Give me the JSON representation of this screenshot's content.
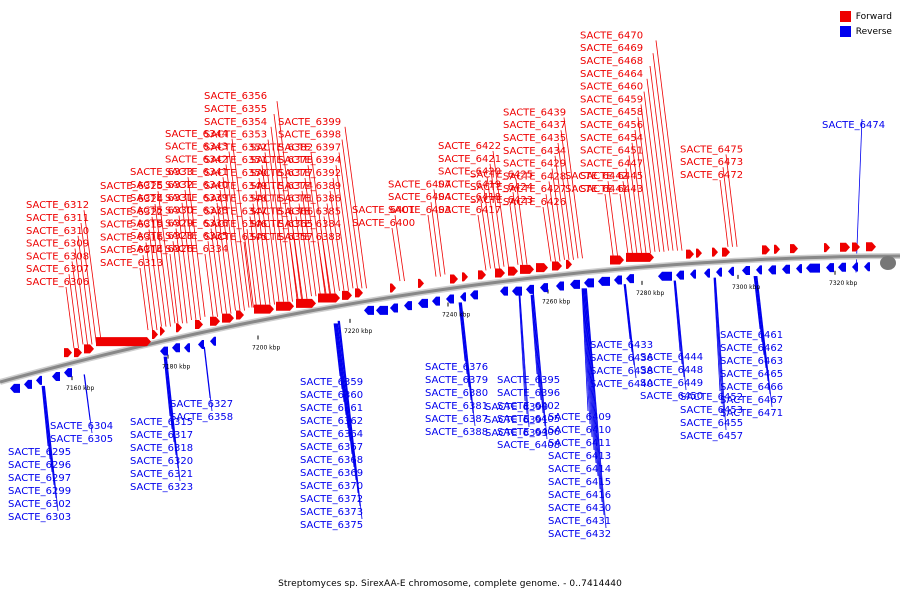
{
  "legend": [
    {
      "label": "Forward",
      "color": "#ee0000"
    },
    {
      "label": "Reverse",
      "color": "#0000ee"
    }
  ],
  "colors": {
    "forward": "#ee0000",
    "reverse": "#0000ee",
    "backbone": "#888888"
  },
  "caption": "Streptomyces sp. SirexAA-E chromosome, complete genome. - 0..7414440",
  "ticks": [
    "7160 kbp",
    "7180 kbp",
    "7200 kbp",
    "7220 kbp",
    "7240 kbp",
    "7260 kbp",
    "7280 kbp",
    "7300 kbp",
    "7320 kbp"
  ],
  "forward_genes": [
    "SACTE_6306",
    "SACTE_6307",
    "SACTE_6308",
    "SACTE_6309",
    "SACTE_6310",
    "SACTE_6311",
    "SACTE_6312",
    "SACTE_6313",
    "SACTE_6314",
    "SACTE_6316",
    "SACTE_6319",
    "SACTE_6322",
    "SACTE_6324",
    "SACTE_6325",
    "SACTE_6326",
    "SACTE_6328",
    "SACTE_6329",
    "SACTE_6330",
    "SACTE_6331",
    "SACTE_6332",
    "SACTE_6333",
    "SACTE_6334",
    "SACTE_6335",
    "SACTE_6336",
    "SACTE_6338",
    "SACTE_6339",
    "SACTE_6340",
    "SACTE_6341",
    "SACTE_6342",
    "SACTE_6343",
    "SACTE_6344",
    "SACTE_6345",
    "SACTE_6346",
    "SACTE_6347",
    "SACTE_6348",
    "SACTE_6349",
    "SACTE_6350",
    "SACTE_6351",
    "SACTE_6352",
    "SACTE_6353",
    "SACTE_6354",
    "SACTE_6355",
    "SACTE_6356",
    "SACTE_6357",
    "SACTE_6365",
    "SACTE_6366",
    "SACTE_6371",
    "SACTE_6374",
    "SACTE_6377",
    "SACTE_6378",
    "SACTE_6382",
    "SACTE_6383",
    "SACTE_6384",
    "SACTE_6385",
    "SACTE_6386",
    "SACTE_6389",
    "SACTE_6392",
    "SACTE_6394",
    "SACTE_6397",
    "SACTE_6398",
    "SACTE_6399",
    "SACTE_6400",
    "SACTE_6401",
    "SACTE_6403",
    "SACTE_6404",
    "SACTE_6407",
    "SACTE_6417",
    "SACTE_6418",
    "SACTE_6419",
    "SACTE_6420",
    "SACTE_6421",
    "SACTE_6422",
    "SACTE_6423",
    "SACTE_6424",
    "SACTE_6425",
    "SACTE_6426",
    "SACTE_6427",
    "SACTE_6428",
    "SACTE_6429",
    "SACTE_6434",
    "SACTE_6435",
    "SACTE_6437",
    "SACTE_6439",
    "SACTE_6441",
    "SACTE_6442",
    "SACTE_6443",
    "SACTE_6445",
    "SACTE_6447",
    "SACTE_6451",
    "SACTE_6454",
    "SACTE_6456",
    "SACTE_6458",
    "SACTE_6459",
    "SACTE_6460",
    "SACTE_6464",
    "SACTE_6468",
    "SACTE_6469",
    "SACTE_6470",
    "SACTE_6472",
    "SACTE_6473",
    "SACTE_6475"
  ],
  "reverse_genes": [
    "SACTE_6474",
    "SACTE_6295",
    "SACTE_6296",
    "SACTE_6297",
    "SACTE_6299",
    "SACTE_6302",
    "SACTE_6303",
    "SACTE_6304",
    "SACTE_6305",
    "SACTE_6315",
    "SACTE_6317",
    "SACTE_6318",
    "SACTE_6320",
    "SACTE_6321",
    "SACTE_6323",
    "SACTE_6327",
    "SACTE_6358",
    "SACTE_6359",
    "SACTE_6360",
    "SACTE_6361",
    "SACTE_6362",
    "SACTE_6364",
    "SACTE_6367",
    "SACTE_6368",
    "SACTE_6369",
    "SACTE_6370",
    "SACTE_6372",
    "SACTE_6373",
    "SACTE_6375",
    "SACTE_6376",
    "SACTE_6379",
    "SACTE_6380",
    "SACTE_6381",
    "SACTE_6387",
    "SACTE_6388",
    "SACTE_6390",
    "SACTE_6391",
    "SACTE_6393",
    "SACTE_6395",
    "SACTE_6396",
    "SACTE_6402",
    "SACTE_6405",
    "SACTE_6406",
    "SACTE_6408",
    "SACTE_6409",
    "SACTE_6410",
    "SACTE_6411",
    "SACTE_6413",
    "SACTE_6414",
    "SACTE_6415",
    "SACTE_6416",
    "SACTE_6430",
    "SACTE_6431",
    "SACTE_6432",
    "SACTE_6433",
    "SACTE_6436",
    "SACTE_6438",
    "SACTE_6440",
    "SACTE_6444",
    "SACTE_6448",
    "SACTE_6449",
    "SACTE_6450",
    "SACTE_6452",
    "SACTE_6453",
    "SACTE_6455",
    "SACTE_6457",
    "SACTE_6461",
    "SACTE_6462",
    "SACTE_6463",
    "SACTE_6465",
    "SACTE_6466",
    "SACTE_6467",
    "SACTE_6471"
  ]
}
